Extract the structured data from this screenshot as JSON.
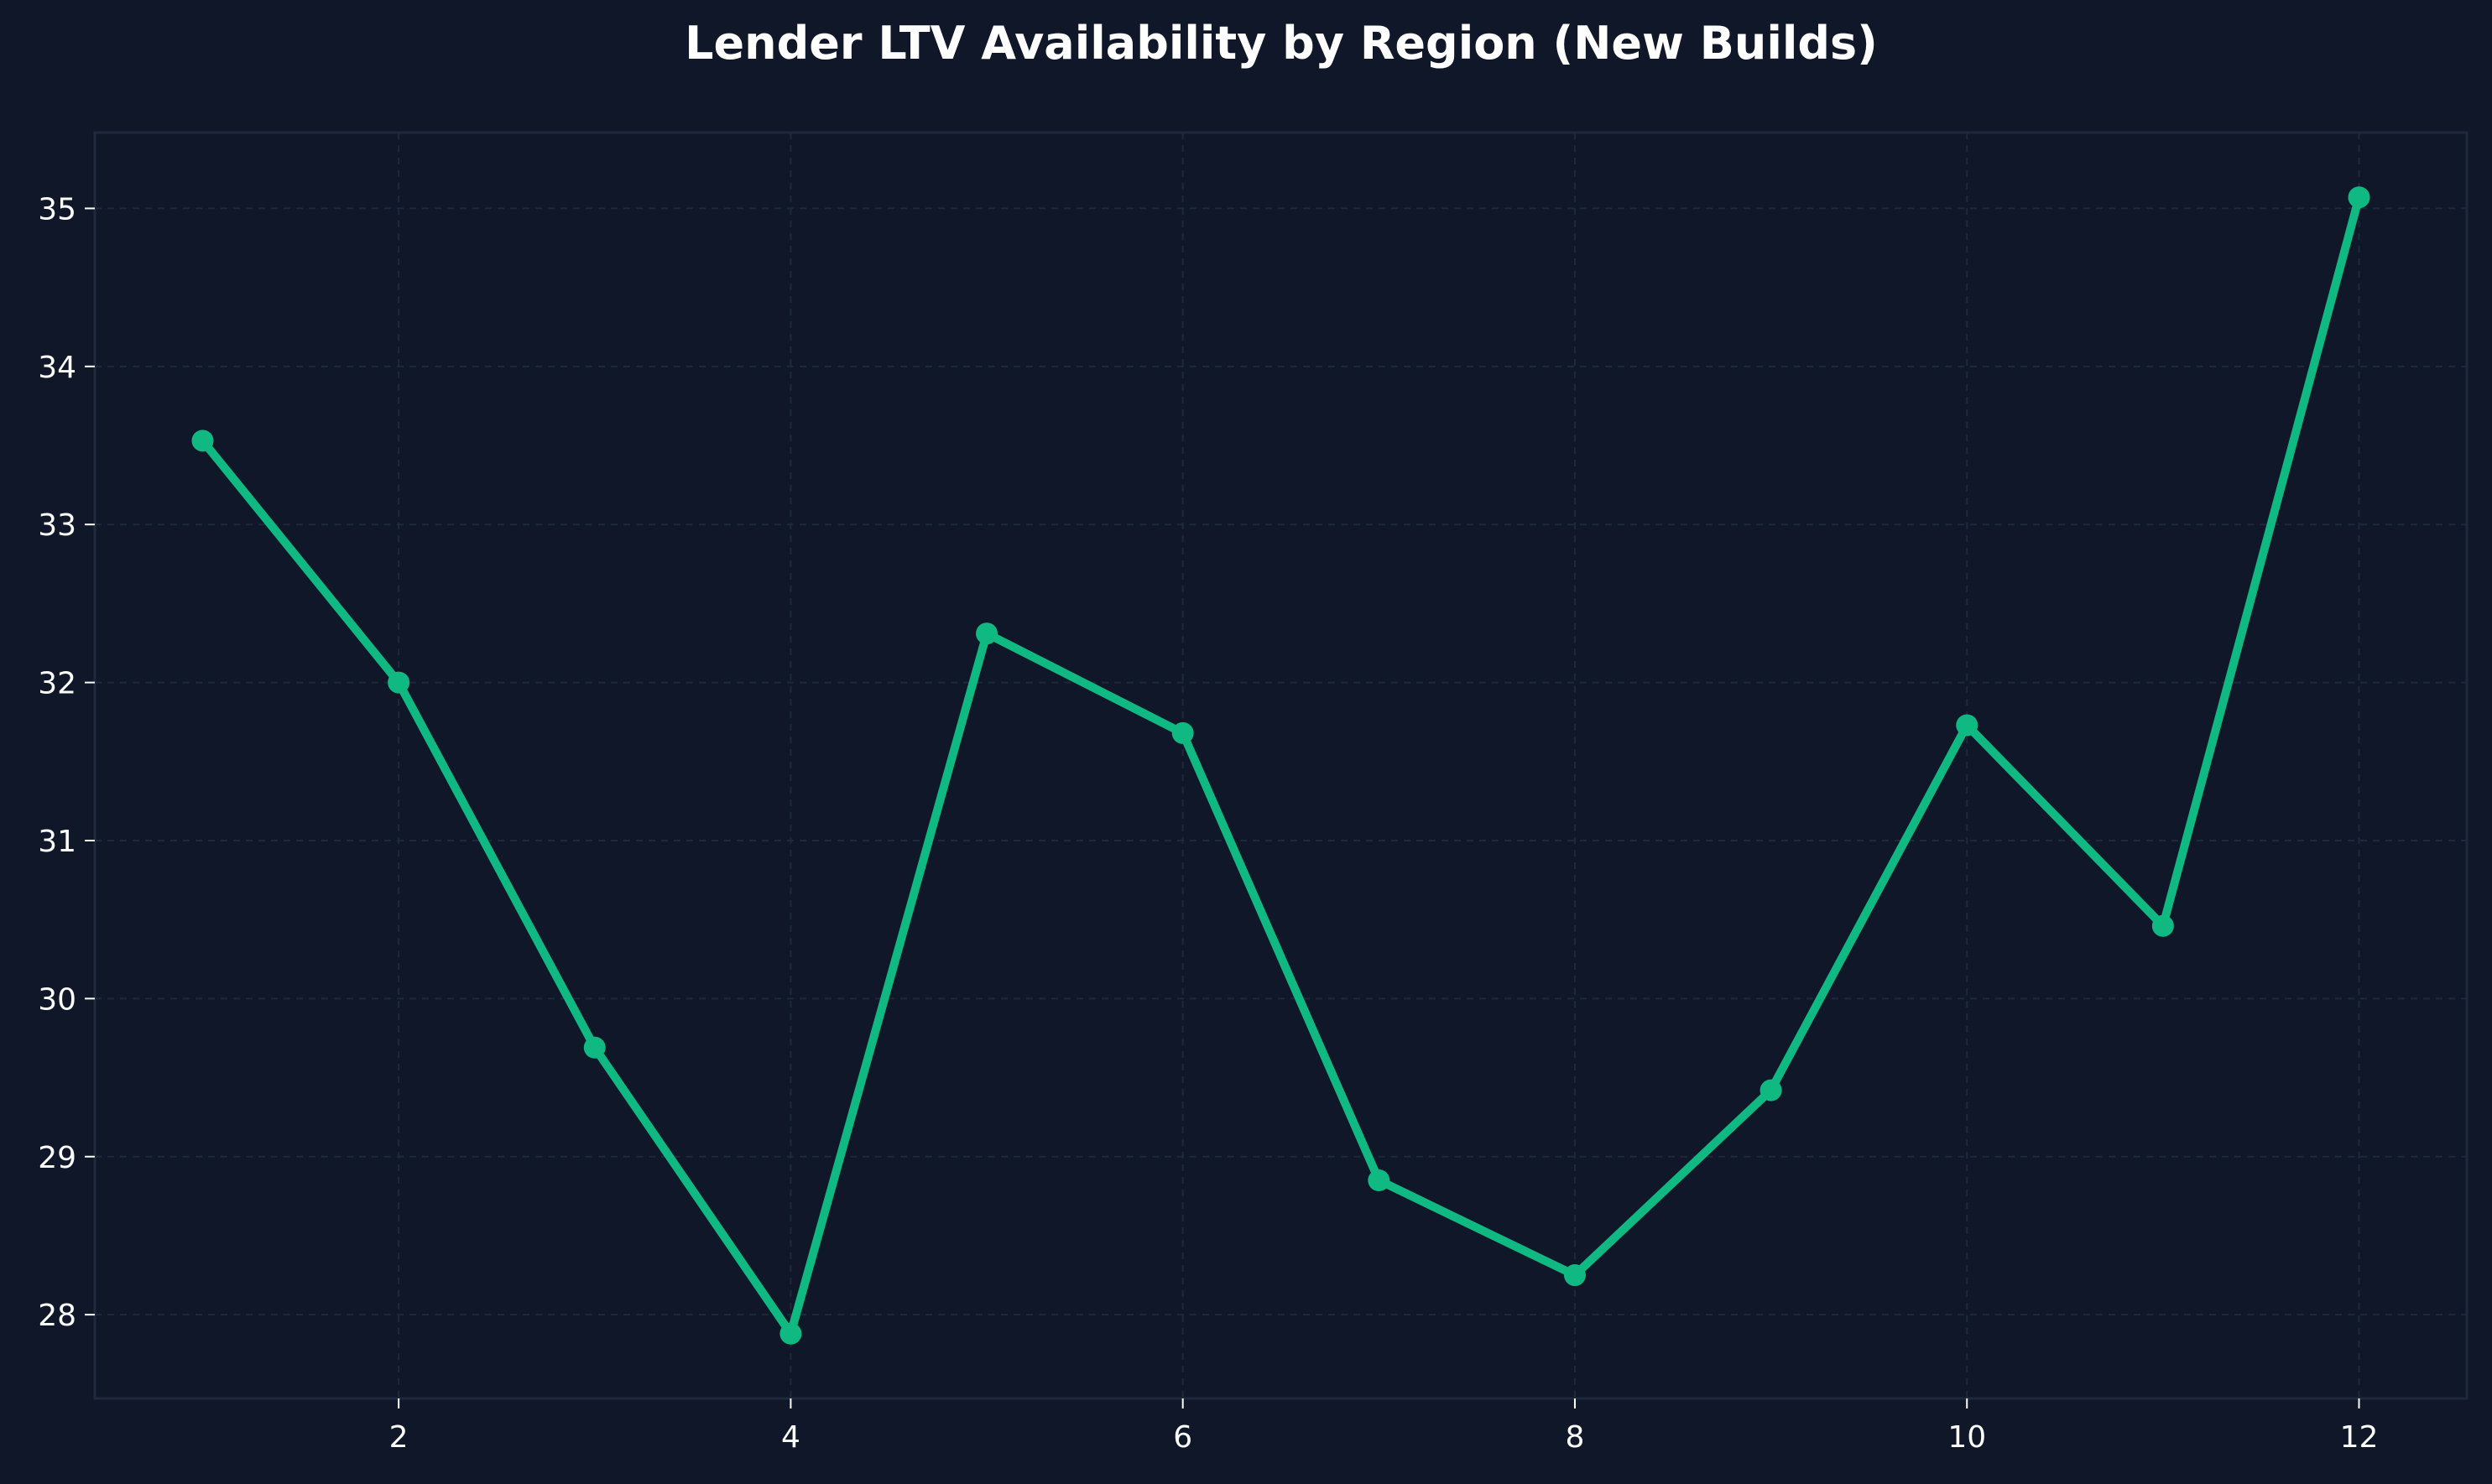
{
  "chart_data": {
    "type": "line",
    "title": "Lender LTV Availability by Region (New Builds)",
    "xlabel": "",
    "ylabel": "",
    "x": [
      1,
      2,
      3,
      4,
      5,
      6,
      7,
      8,
      9,
      10,
      11,
      12
    ],
    "series": [
      {
        "values": [
          33.53,
          32.0,
          29.69,
          27.88,
          32.31,
          31.68,
          28.85,
          28.25,
          29.42,
          31.73,
          30.46,
          35.07
        ]
      }
    ],
    "xlim": [
      0.45,
      12.55
    ],
    "ylim": [
      27.47,
      35.48
    ],
    "xticks": [
      2,
      4,
      6,
      8,
      10,
      12
    ],
    "yticks": [
      28,
      29,
      30,
      31,
      32,
      33,
      34,
      35
    ],
    "grid": true,
    "legend": "none",
    "colors": {
      "background": "#0f1729",
      "line": "#10b981",
      "axes_frame": "#1e293b",
      "grid": "#1e293b",
      "text": "#ffffff"
    }
  }
}
